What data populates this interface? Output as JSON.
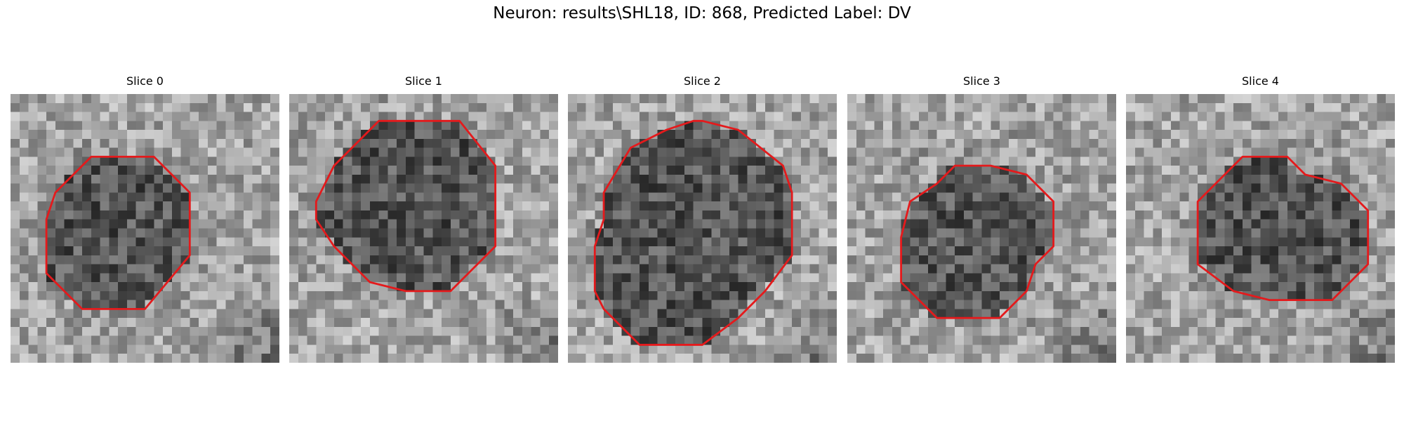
{
  "figure": {
    "title": "Neuron: results\\SHL18, ID: 868, Predicted Label: DV"
  },
  "colors": {
    "contour": "#e41a1c",
    "background": "#ffffff",
    "text": "#000000"
  },
  "colormap": "gray",
  "grid_size": 30,
  "panels": [
    {
      "title": "Slice 0",
      "contour": [
        [
          9,
          7
        ],
        [
          16,
          7
        ],
        [
          20,
          11
        ],
        [
          20,
          18
        ],
        [
          15,
          24
        ],
        [
          8,
          24
        ],
        [
          4,
          20
        ],
        [
          4,
          14
        ],
        [
          5,
          11
        ]
      ]
    },
    {
      "title": "Slice 1",
      "contour": [
        [
          13,
          3
        ],
        [
          19,
          3
        ],
        [
          23,
          8
        ],
        [
          23,
          17
        ],
        [
          18,
          22
        ],
        [
          13,
          22
        ],
        [
          9,
          21
        ],
        [
          5,
          17
        ],
        [
          3,
          14
        ],
        [
          3,
          12
        ],
        [
          4,
          10
        ],
        [
          5,
          8
        ],
        [
          10,
          3
        ]
      ]
    },
    {
      "title": "Slice 2",
      "contour": [
        [
          15,
          3
        ],
        [
          19,
          4
        ],
        [
          24,
          8
        ],
        [
          25,
          11
        ],
        [
          25,
          18
        ],
        [
          22,
          22
        ],
        [
          19,
          25
        ],
        [
          15,
          28
        ],
        [
          8,
          28
        ],
        [
          4,
          24
        ],
        [
          3,
          22
        ],
        [
          3,
          17
        ],
        [
          4,
          14
        ],
        [
          4,
          11
        ],
        [
          7,
          6
        ],
        [
          11,
          4
        ],
        [
          14,
          3
        ]
      ]
    },
    {
      "title": "Slice 3",
      "contour": [
        [
          12,
          8
        ],
        [
          16,
          8
        ],
        [
          20,
          9
        ],
        [
          23,
          12
        ],
        [
          23,
          17
        ],
        [
          21,
          19
        ],
        [
          20,
          22
        ],
        [
          17,
          25
        ],
        [
          10,
          25
        ],
        [
          6,
          21
        ],
        [
          6,
          16
        ],
        [
          7,
          12
        ],
        [
          10,
          10
        ]
      ]
    },
    {
      "title": "Slice 4",
      "contour": [
        [
          13,
          7
        ],
        [
          18,
          7
        ],
        [
          20,
          9
        ],
        [
          24,
          10
        ],
        [
          27,
          13
        ],
        [
          27,
          19
        ],
        [
          23,
          23
        ],
        [
          16,
          23
        ],
        [
          12,
          22
        ],
        [
          8,
          19
        ],
        [
          8,
          12
        ],
        [
          12,
          8
        ]
      ]
    }
  ]
}
